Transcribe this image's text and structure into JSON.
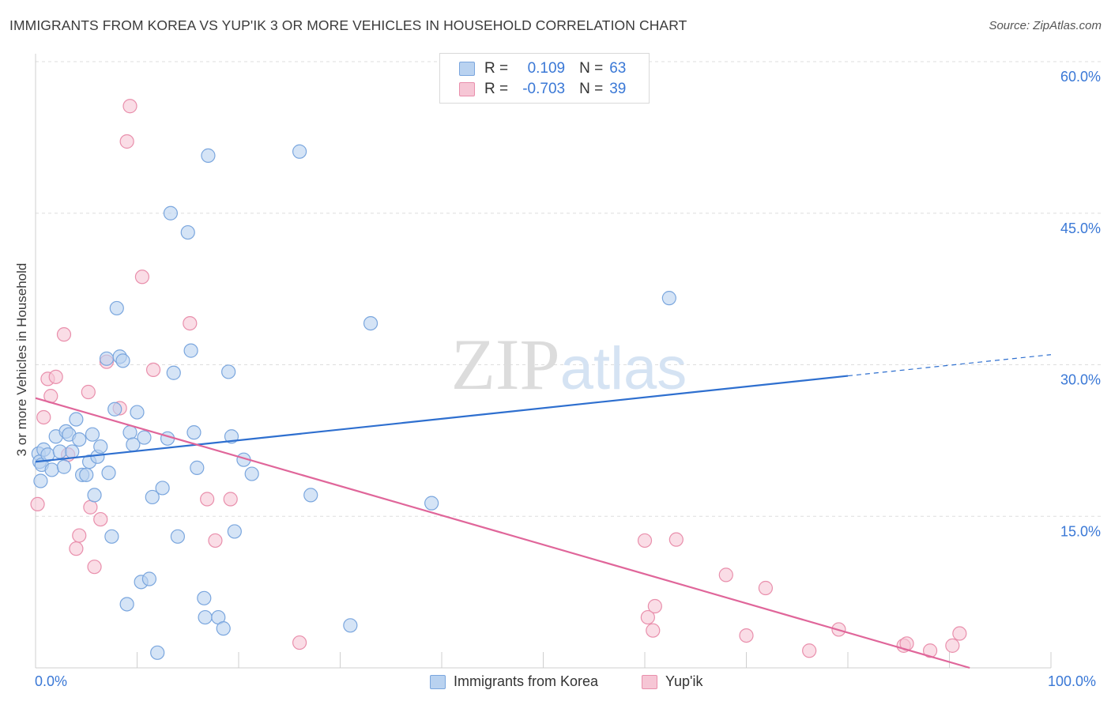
{
  "header": {
    "title": "IMMIGRANTS FROM KOREA VS YUP'IK 3 OR MORE VEHICLES IN HOUSEHOLD CORRELATION CHART",
    "source": "Source: ZipAtlas.com"
  },
  "watermark": "ZIPatlas",
  "legend": {
    "rows": [
      {
        "r_label": "R =",
        "r_value": "0.109",
        "n_label": "N =",
        "n_value": "63"
      },
      {
        "r_label": "R =",
        "r_value": "-0.703",
        "n_label": "N =",
        "n_value": "39"
      }
    ]
  },
  "bottom_legend": {
    "series1": "Immigrants from Korea",
    "series2": "Yup'ik"
  },
  "colors": {
    "blue_fill": "#b9d2f0",
    "blue_stroke": "#7aa6de",
    "blue_line": "#2e6fcf",
    "pink_fill": "#f6c6d5",
    "pink_stroke": "#e98fac",
    "pink_line": "#e0669a",
    "tick_text": "#3a78d6",
    "grid": "#dddddd"
  },
  "chart_data": {
    "type": "scatter",
    "title": "IMMIGRANTS FROM KOREA VS YUP'IK 3 OR MORE VEHICLES IN HOUSEHOLD CORRELATION CHART",
    "xlabel": "",
    "ylabel": "3 or more Vehicles in Household",
    "xlim": [
      0,
      100
    ],
    "ylim": [
      0,
      60
    ],
    "x_tick_labels": [
      "0.0%",
      "100.0%"
    ],
    "y_ticks": [
      15,
      30,
      45,
      60
    ],
    "y_tick_labels": [
      "15.0%",
      "30.0%",
      "45.0%",
      "60.0%"
    ],
    "grid": true,
    "series": [
      {
        "name": "Immigrants from Korea",
        "points": [
          [
            0.3,
            21.2
          ],
          [
            0.4,
            20.4
          ],
          [
            0.5,
            18.5
          ],
          [
            0.6,
            20.1
          ],
          [
            0.8,
            21.6
          ],
          [
            1.2,
            21.1
          ],
          [
            1.6,
            19.6
          ],
          [
            2.0,
            22.9
          ],
          [
            2.4,
            21.4
          ],
          [
            2.8,
            19.9
          ],
          [
            3.0,
            23.4
          ],
          [
            3.3,
            23.1
          ],
          [
            3.6,
            21.4
          ],
          [
            4.0,
            24.6
          ],
          [
            4.3,
            22.6
          ],
          [
            4.6,
            19.1
          ],
          [
            5.0,
            19.1
          ],
          [
            5.3,
            20.4
          ],
          [
            5.6,
            23.1
          ],
          [
            5.8,
            17.1
          ],
          [
            6.1,
            20.9
          ],
          [
            6.4,
            21.9
          ],
          [
            7.0,
            30.6
          ],
          [
            7.2,
            19.3
          ],
          [
            7.5,
            13.0
          ],
          [
            7.8,
            25.6
          ],
          [
            8.0,
            35.6
          ],
          [
            8.3,
            30.8
          ],
          [
            8.6,
            30.4
          ],
          [
            9.0,
            6.3
          ],
          [
            9.3,
            23.3
          ],
          [
            9.6,
            22.1
          ],
          [
            10.0,
            25.3
          ],
          [
            10.4,
            8.5
          ],
          [
            10.7,
            22.8
          ],
          [
            11.2,
            8.8
          ],
          [
            11.5,
            16.9
          ],
          [
            12.0,
            1.5
          ],
          [
            12.5,
            17.8
          ],
          [
            13.0,
            22.7
          ],
          [
            13.3,
            45.0
          ],
          [
            13.6,
            29.2
          ],
          [
            14.0,
            13.0
          ],
          [
            15.0,
            43.1
          ],
          [
            15.3,
            31.4
          ],
          [
            15.6,
            23.3
          ],
          [
            15.9,
            19.8
          ],
          [
            16.6,
            6.9
          ],
          [
            16.7,
            5.0
          ],
          [
            17.0,
            50.7
          ],
          [
            18.0,
            5.0
          ],
          [
            18.5,
            3.9
          ],
          [
            19.0,
            29.3
          ],
          [
            19.3,
            22.9
          ],
          [
            19.6,
            13.5
          ],
          [
            20.5,
            20.6
          ],
          [
            21.3,
            19.2
          ],
          [
            26.0,
            51.1
          ],
          [
            27.1,
            17.1
          ],
          [
            31.0,
            4.2
          ],
          [
            33.0,
            34.1
          ],
          [
            39.0,
            16.3
          ],
          [
            62.4,
            36.6
          ]
        ]
      },
      {
        "name": "Yup'ik",
        "points": [
          [
            0.2,
            16.2
          ],
          [
            0.8,
            24.8
          ],
          [
            1.2,
            28.6
          ],
          [
            1.5,
            26.9
          ],
          [
            2.0,
            28.8
          ],
          [
            2.8,
            33.0
          ],
          [
            3.2,
            21.1
          ],
          [
            4.0,
            11.8
          ],
          [
            4.3,
            13.1
          ],
          [
            5.2,
            27.3
          ],
          [
            5.4,
            15.9
          ],
          [
            5.8,
            10.0
          ],
          [
            6.4,
            14.7
          ],
          [
            7.0,
            30.3
          ],
          [
            8.3,
            25.7
          ],
          [
            9.0,
            52.1
          ],
          [
            9.3,
            55.6
          ],
          [
            10.5,
            38.7
          ],
          [
            11.6,
            29.5
          ],
          [
            15.2,
            34.1
          ],
          [
            16.9,
            16.7
          ],
          [
            17.7,
            12.6
          ],
          [
            19.2,
            16.7
          ],
          [
            26.0,
            2.5
          ],
          [
            60.0,
            12.6
          ],
          [
            60.3,
            5.0
          ],
          [
            60.8,
            3.7
          ],
          [
            61.0,
            6.1
          ],
          [
            63.1,
            12.7
          ],
          [
            68.0,
            9.2
          ],
          [
            70.0,
            3.2
          ],
          [
            71.9,
            7.9
          ],
          [
            76.2,
            1.7
          ],
          [
            79.1,
            3.8
          ],
          [
            85.5,
            2.2
          ],
          [
            85.8,
            2.4
          ],
          [
            88.1,
            1.7
          ],
          [
            90.3,
            2.2
          ],
          [
            91.0,
            3.4
          ]
        ]
      }
    ],
    "trend_lines": [
      {
        "name": "Immigrants from Korea",
        "solid": [
          [
            0,
            20.4
          ],
          [
            80,
            28.9
          ]
        ],
        "dashed": [
          [
            80,
            28.9
          ],
          [
            100,
            31.0
          ]
        ]
      },
      {
        "name": "Yup'ik",
        "solid": [
          [
            0,
            26.7
          ],
          [
            92,
            0.0
          ]
        ]
      }
    ]
  }
}
